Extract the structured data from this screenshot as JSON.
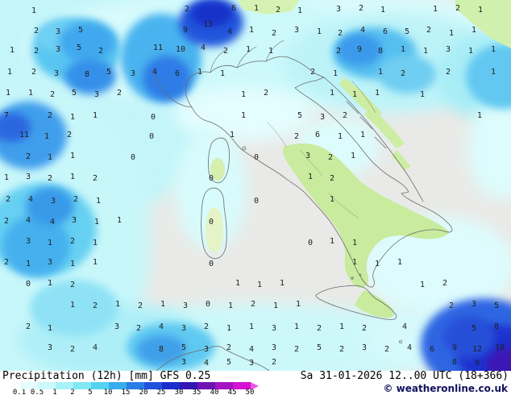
{
  "legend": {
    "title": "Precipitation (12h) [mm] GFS 0.25",
    "datetime": "Sa 31-01-2026 12..00 UTC (18+366)",
    "copyright": "© weatheronline.co.uk",
    "scale": {
      "labels": [
        "0.1",
        "0.5",
        "1",
        "2",
        "5",
        "10",
        "15",
        "20",
        "25",
        "30",
        "35",
        "40",
        "45",
        "50"
      ],
      "colors": [
        "#ffffff",
        "#e6fdfd",
        "#ccf9fb",
        "#a8f2f8",
        "#7fe8f4",
        "#55d2f0",
        "#36adec",
        "#2a7de6",
        "#2152dc",
        "#1b2ecf",
        "#3317b4",
        "#6c15b4",
        "#a513c3",
        "#d512d2",
        "#f055e8"
      ]
    }
  },
  "map": {
    "units": "mm",
    "value_color": "#1f1f1f",
    "values": [
      [
        1,
        42,
        16
      ],
      [
        2,
        232,
        14
      ],
      [
        6,
        290,
        13
      ],
      [
        1,
        318,
        13
      ],
      [
        2,
        345,
        15
      ],
      [
        1,
        372,
        16
      ],
      [
        3,
        420,
        14
      ],
      [
        2,
        448,
        13
      ],
      [
        1,
        475,
        15
      ],
      [
        1,
        540,
        14
      ],
      [
        2,
        568,
        13
      ],
      [
        1,
        596,
        15
      ],
      [
        2,
        45,
        41
      ],
      [
        3,
        72,
        42
      ],
      [
        5,
        100,
        40
      ],
      [
        9,
        230,
        40
      ],
      [
        13,
        258,
        33
      ],
      [
        4,
        285,
        42
      ],
      [
        1,
        312,
        40
      ],
      [
        2,
        340,
        44
      ],
      [
        3,
        368,
        40
      ],
      [
        1,
        396,
        42
      ],
      [
        2,
        422,
        44
      ],
      [
        4,
        450,
        40
      ],
      [
        6,
        478,
        42
      ],
      [
        5,
        505,
        42
      ],
      [
        2,
        532,
        40
      ],
      [
        1,
        560,
        44
      ],
      [
        1,
        588,
        40
      ],
      [
        1,
        15,
        65
      ],
      [
        2,
        45,
        66
      ],
      [
        3,
        72,
        64
      ],
      [
        5,
        98,
        62
      ],
      [
        2,
        125,
        66
      ],
      [
        11,
        196,
        62
      ],
      [
        10,
        224,
        64
      ],
      [
        4,
        252,
        62
      ],
      [
        2,
        280,
        66
      ],
      [
        1,
        308,
        64
      ],
      [
        1,
        336,
        66
      ],
      [
        2,
        420,
        66
      ],
      [
        9,
        446,
        64
      ],
      [
        8,
        472,
        66
      ],
      [
        1,
        500,
        64
      ],
      [
        1,
        528,
        66
      ],
      [
        3,
        556,
        64
      ],
      [
        1,
        584,
        66
      ],
      [
        1,
        612,
        64
      ],
      [
        1,
        12,
        92
      ],
      [
        2,
        42,
        92
      ],
      [
        3,
        70,
        94
      ],
      [
        8,
        108,
        95
      ],
      [
        5,
        135,
        92
      ],
      [
        3,
        165,
        94
      ],
      [
        4,
        192,
        92
      ],
      [
        6,
        220,
        94
      ],
      [
        1,
        248,
        92
      ],
      [
        1,
        276,
        94
      ],
      [
        2,
        388,
        92
      ],
      [
        1,
        416,
        94
      ],
      [
        1,
        472,
        92
      ],
      [
        2,
        500,
        94
      ],
      [
        2,
        556,
        92
      ],
      [
        1,
        612,
        92
      ],
      [
        1,
        10,
        118
      ],
      [
        1,
        38,
        118
      ],
      [
        2,
        65,
        120
      ],
      [
        5,
        92,
        118
      ],
      [
        3,
        120,
        120
      ],
      [
        2,
        148,
        118
      ],
      [
        1,
        302,
        120
      ],
      [
        2,
        330,
        118
      ],
      [
        1,
        412,
        118
      ],
      [
        1,
        440,
        120
      ],
      [
        1,
        468,
        118
      ],
      [
        1,
        524,
        120
      ],
      [
        7,
        8,
        146
      ],
      [
        2,
        62,
        146
      ],
      [
        1,
        90,
        148
      ],
      [
        1,
        118,
        146
      ],
      [
        0,
        190,
        148
      ],
      [
        1,
        302,
        146
      ],
      [
        5,
        372,
        146
      ],
      [
        3,
        400,
        148
      ],
      [
        2,
        428,
        146
      ],
      [
        1,
        595,
        146
      ],
      [
        11,
        30,
        170
      ],
      [
        1,
        58,
        172
      ],
      [
        2,
        86,
        170
      ],
      [
        0,
        188,
        172
      ],
      [
        1,
        288,
        170
      ],
      [
        2,
        368,
        172
      ],
      [
        6,
        394,
        170
      ],
      [
        1,
        422,
        172
      ],
      [
        1,
        450,
        170
      ],
      [
        2,
        35,
        197
      ],
      [
        1,
        62,
        198
      ],
      [
        1,
        90,
        196
      ],
      [
        0,
        165,
        198
      ],
      [
        0,
        318,
        198
      ],
      [
        3,
        382,
        196
      ],
      [
        2,
        410,
        198
      ],
      [
        1,
        438,
        196
      ],
      [
        1,
        8,
        223
      ],
      [
        3,
        35,
        222
      ],
      [
        2,
        62,
        224
      ],
      [
        1,
        90,
        222
      ],
      [
        2,
        118,
        224
      ],
      [
        0,
        262,
        224
      ],
      [
        1,
        385,
        222
      ],
      [
        2,
        412,
        224
      ],
      [
        2,
        10,
        250
      ],
      [
        4,
        38,
        250
      ],
      [
        3,
        66,
        252
      ],
      [
        2,
        94,
        250
      ],
      [
        1,
        122,
        252
      ],
      [
        0,
        318,
        252
      ],
      [
        1,
        412,
        250
      ],
      [
        2,
        8,
        277
      ],
      [
        4,
        35,
        276
      ],
      [
        4,
        65,
        278
      ],
      [
        3,
        92,
        276
      ],
      [
        1,
        120,
        278
      ],
      [
        1,
        148,
        276
      ],
      [
        0,
        262,
        278
      ],
      [
        3,
        35,
        302
      ],
      [
        1,
        62,
        304
      ],
      [
        2,
        90,
        302
      ],
      [
        1,
        118,
        304
      ],
      [
        0,
        385,
        304
      ],
      [
        1,
        412,
        302
      ],
      [
        1,
        440,
        304
      ],
      [
        2,
        8,
        328
      ],
      [
        1,
        35,
        330
      ],
      [
        3,
        62,
        328
      ],
      [
        1,
        90,
        330
      ],
      [
        1,
        118,
        328
      ],
      [
        0,
        262,
        330
      ],
      [
        1,
        440,
        328
      ],
      [
        1,
        468,
        330
      ],
      [
        1,
        496,
        328
      ],
      [
        0,
        35,
        355
      ],
      [
        1,
        62,
        354
      ],
      [
        2,
        90,
        356
      ],
      [
        1,
        295,
        354
      ],
      [
        1,
        322,
        356
      ],
      [
        1,
        350,
        354
      ],
      [
        1,
        524,
        356
      ],
      [
        2,
        552,
        354
      ],
      [
        1,
        90,
        381
      ],
      [
        2,
        118,
        382
      ],
      [
        1,
        146,
        380
      ],
      [
        2,
        174,
        382
      ],
      [
        1,
        202,
        380
      ],
      [
        3,
        230,
        382
      ],
      [
        0,
        258,
        380
      ],
      [
        1,
        286,
        382
      ],
      [
        2,
        314,
        380
      ],
      [
        1,
        342,
        382
      ],
      [
        1,
        370,
        380
      ],
      [
        2,
        560,
        382
      ],
      [
        3,
        588,
        380
      ],
      [
        5,
        616,
        382
      ],
      [
        2,
        35,
        408
      ],
      [
        1,
        62,
        410
      ],
      [
        3,
        145,
        408
      ],
      [
        2,
        172,
        410
      ],
      [
        4,
        200,
        408
      ],
      [
        3,
        228,
        410
      ],
      [
        2,
        256,
        408
      ],
      [
        1,
        284,
        410
      ],
      [
        1,
        312,
        408
      ],
      [
        3,
        340,
        410
      ],
      [
        1,
        368,
        408
      ],
      [
        2,
        396,
        410
      ],
      [
        1,
        424,
        408
      ],
      [
        2,
        452,
        410
      ],
      [
        4,
        502,
        408
      ],
      [
        5,
        588,
        410
      ],
      [
        8,
        616,
        408
      ],
      [
        3,
        62,
        434
      ],
      [
        2,
        90,
        436
      ],
      [
        4,
        118,
        434
      ],
      [
        8,
        200,
        436
      ],
      [
        5,
        228,
        434
      ],
      [
        3,
        256,
        436
      ],
      [
        2,
        284,
        434
      ],
      [
        4,
        312,
        436
      ],
      [
        3,
        340,
        434
      ],
      [
        2,
        368,
        436
      ],
      [
        5,
        396,
        434
      ],
      [
        2,
        424,
        436
      ],
      [
        3,
        452,
        434
      ],
      [
        2,
        480,
        436
      ],
      [
        4,
        508,
        434
      ],
      [
        6,
        536,
        436
      ],
      [
        9,
        564,
        434
      ],
      [
        12,
        592,
        436
      ],
      [
        10,
        620,
        434
      ],
      [
        3,
        228,
        452
      ],
      [
        4,
        256,
        453
      ],
      [
        5,
        284,
        452
      ],
      [
        3,
        312,
        453
      ],
      [
        2,
        340,
        452
      ],
      [
        8,
        564,
        452
      ],
      [
        9,
        592,
        453
      ]
    ]
  }
}
